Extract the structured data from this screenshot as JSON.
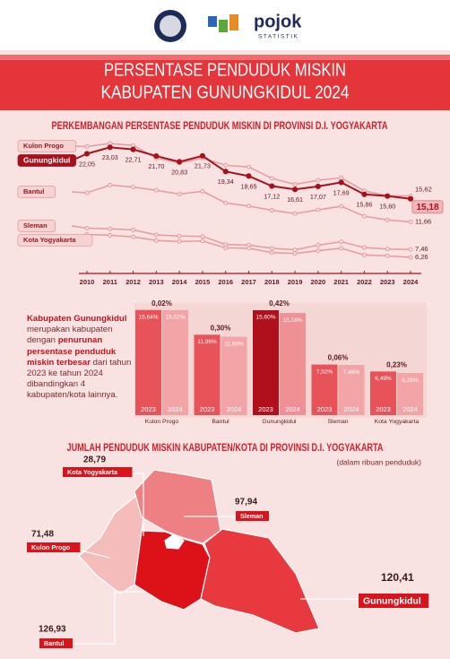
{
  "header": {
    "logo_text": "pojok",
    "logo_subtext": "STATISTIK",
    "title": [
      "PERSENTASE PENDUDUK MISKIN",
      "KABUPATEN GUNUNGKIDUL 2024"
    ]
  },
  "chart_data": [
    {
      "type": "line",
      "title": "PERKEMBANGAN PERSENTASE PENDUDUK MISKIN DI PROVINSI D.I. YOGYAKARTA",
      "x": [
        2010,
        2011,
        2012,
        2013,
        2014,
        2015,
        2016,
        2017,
        2018,
        2019,
        2020,
        2021,
        2022,
        2023,
        2024
      ],
      "series": [
        {
          "name": "Kulon Progo",
          "color": "#e59a9d",
          "values": [
            23.15,
            23.62,
            23.32,
            21.39,
            20.64,
            21.4,
            20.3,
            20.03,
            18.3,
            17.39,
            18.01,
            18.38,
            16.39,
            15.64,
            15.62
          ],
          "value_labels": [
            null,
            null,
            null,
            null,
            null,
            null,
            null,
            null,
            null,
            null,
            null,
            null,
            null,
            null,
            "15,62"
          ]
        },
        {
          "name": "Gunungkidul",
          "color": "#a5121c",
          "highlight": true,
          "values": [
            22.05,
            23.03,
            22.71,
            21.7,
            20.83,
            21.73,
            19.34,
            18.65,
            17.12,
            16.61,
            17.07,
            17.69,
            15.86,
            15.6,
            15.18
          ],
          "value_labels": [
            "22,05",
            "23,03",
            "22,71",
            "21,70",
            "20,83",
            "21,73",
            "19,34",
            "18,65",
            "17,12",
            "16,61",
            "17,07",
            "17,69",
            "15,86",
            "15,60",
            "15,18"
          ]
        },
        {
          "name": "Bantul",
          "color": "#e59a9d",
          "values": [
            16.09,
            17.28,
            16.97,
            16.48,
            15.89,
            16.33,
            14.55,
            14.07,
            13.43,
            12.92,
            13.5,
            14.04,
            12.52,
            11.96,
            11.66
          ],
          "value_labels": [
            null,
            null,
            null,
            null,
            null,
            null,
            null,
            null,
            null,
            null,
            null,
            null,
            null,
            null,
            "11,66"
          ]
        },
        {
          "name": "Sleman",
          "color": "#e59a9d",
          "values": [
            10.7,
            10.61,
            10.44,
            9.68,
            9.5,
            9.46,
            8.21,
            8.13,
            7.65,
            7.41,
            8.12,
            8.64,
            7.74,
            7.52,
            7.46
          ],
          "value_labels": [
            null,
            null,
            null,
            null,
            null,
            null,
            null,
            null,
            null,
            null,
            null,
            null,
            null,
            null,
            "7,46"
          ]
        },
        {
          "name": "Kota Yogyakarta",
          "color": "#e59a9d",
          "values": [
            9.75,
            9.62,
            9.38,
            8.82,
            8.67,
            8.75,
            7.7,
            7.64,
            6.98,
            6.84,
            7.27,
            7.64,
            6.62,
            6.49,
            6.26
          ],
          "value_labels": [
            null,
            null,
            null,
            null,
            null,
            null,
            null,
            null,
            null,
            null,
            null,
            null,
            null,
            null,
            "6,26"
          ]
        }
      ]
    },
    {
      "type": "bar",
      "text": [
        "Kabupaten Gunungkidul",
        "merupakan kabupaten dengan",
        "penurunan persentase penduduk miskin terbesar",
        "dari tahun 2023 ke tahun 2024 dibandingkan 4 kabupaten/kota lainnya."
      ],
      "categories": [
        "Kulon Progo",
        "Bantul",
        "Gunungkidul",
        "Sleman",
        "Kota Yogyakarta"
      ],
      "series": [
        {
          "name": "2023",
          "colors": [
            "#e8535a",
            "#e8535a",
            "#b0101c",
            "#e8535a",
            "#e8535a"
          ],
          "values": [
            15.64,
            11.96,
            15.6,
            7.52,
            6.49
          ],
          "value_labels": [
            "15,64%",
            "11,96%",
            "15,60%",
            "7,52%",
            "6,49%"
          ]
        },
        {
          "name": "2024",
          "colors": [
            "#f2a4a6",
            "#f2a4a6",
            "#ef9094",
            "#f2a4a6",
            "#f2a4a6"
          ],
          "values": [
            15.62,
            11.66,
            15.18,
            7.46,
            6.26
          ],
          "value_labels": [
            "15,62%",
            "11,66%",
            "15,18%",
            "7,46%",
            "6,26%"
          ]
        }
      ],
      "differences": {
        "values": [
          0.02,
          0.3,
          0.42,
          0.06,
          0.23
        ],
        "value_labels": [
          "0,02%",
          "0,30%",
          "0,42%",
          "0,06%",
          "0,23%"
        ]
      }
    },
    {
      "type": "map",
      "title": "JUMLAH PENDUDUK MISKIN KABUPATEN/KOTA DI PROVINSI D.I. YOGYAKARTA",
      "subtitle": "(dalam ribuan penduduk)",
      "regions": [
        {
          "name": "Kota Yogyakarta",
          "value": 28.79,
          "value_label": "28,79",
          "color": "#ffffff"
        },
        {
          "name": "Sleman",
          "value": 97.94,
          "value_label": "97,94",
          "color": "#ee7f82"
        },
        {
          "name": "Kulon Progo",
          "value": 71.48,
          "value_label": "71,48",
          "color": "#f5bcbc"
        },
        {
          "name": "Gunungkidul",
          "value": 120.41,
          "value_label": "120,41",
          "color": "#e8393f"
        },
        {
          "name": "Bantul",
          "value": 126.93,
          "value_label": "126,93",
          "color": "#dd1219"
        }
      ]
    }
  ]
}
